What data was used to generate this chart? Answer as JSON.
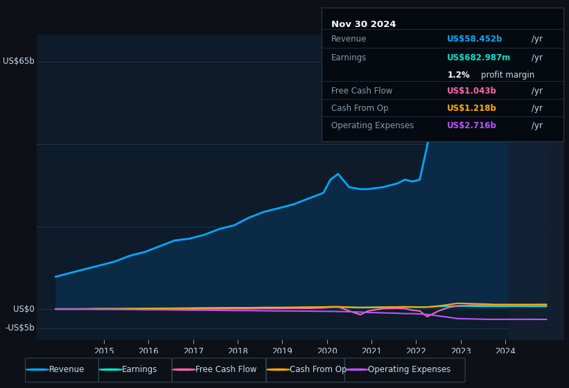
{
  "bg_color": "#0d1117",
  "plot_bg_color": "#0d1b2a",
  "ylabel_top": "US$65b",
  "ylabel_mid": "US$0",
  "ylabel_bot": "-US$5b",
  "x_years": [
    2013.92,
    2014.25,
    2014.58,
    2014.92,
    2015.25,
    2015.58,
    2015.92,
    2016.25,
    2016.58,
    2016.92,
    2017.25,
    2017.58,
    2017.92,
    2018.25,
    2018.58,
    2018.92,
    2019.25,
    2019.58,
    2019.92,
    2020.08,
    2020.25,
    2020.5,
    2020.75,
    2020.92,
    2021.25,
    2021.58,
    2021.75,
    2021.92,
    2022.08,
    2022.25,
    2022.5,
    2022.75,
    2022.92,
    2023.25,
    2023.58,
    2023.75,
    2023.92,
    2024.25,
    2024.58,
    2024.92
  ],
  "revenue": [
    8.5,
    9.5,
    10.5,
    11.5,
    12.5,
    14.0,
    15.0,
    16.5,
    18.0,
    18.5,
    19.5,
    21.0,
    22.0,
    24.0,
    25.5,
    26.5,
    27.5,
    29.0,
    30.5,
    34.0,
    35.5,
    32.0,
    31.5,
    31.5,
    32.0,
    33.0,
    34.0,
    33.5,
    34.0,
    43.0,
    58.0,
    64.5,
    65.0,
    62.0,
    58.0,
    55.0,
    53.0,
    53.5,
    56.0,
    58.0
  ],
  "earnings": [
    0.05,
    0.05,
    0.05,
    0.1,
    0.1,
    0.1,
    0.15,
    0.2,
    0.2,
    0.25,
    0.3,
    0.3,
    0.35,
    0.35,
    0.4,
    0.4,
    0.4,
    0.45,
    0.5,
    0.5,
    0.5,
    0.45,
    0.4,
    0.4,
    0.45,
    0.5,
    0.5,
    0.5,
    0.5,
    0.55,
    0.7,
    0.75,
    0.8,
    0.75,
    0.7,
    0.7,
    0.7,
    0.7,
    0.68,
    0.68
  ],
  "free_cash_flow": [
    0.0,
    0.0,
    0.0,
    0.0,
    0.0,
    0.0,
    0.0,
    0.0,
    0.0,
    0.0,
    0.05,
    0.05,
    0.1,
    0.1,
    0.15,
    0.15,
    0.2,
    0.2,
    0.3,
    0.5,
    0.6,
    -0.5,
    -1.5,
    -0.5,
    0.1,
    0.2,
    0.1,
    -0.3,
    -0.5,
    -2.0,
    -0.5,
    0.5,
    0.8,
    1.0,
    1.0,
    1.0,
    1.0,
    1.0,
    1.0,
    1.04
  ],
  "cash_from_op": [
    0.0,
    0.0,
    0.0,
    0.05,
    0.05,
    0.1,
    0.1,
    0.15,
    0.2,
    0.2,
    0.25,
    0.3,
    0.3,
    0.35,
    0.4,
    0.4,
    0.45,
    0.5,
    0.55,
    0.6,
    0.6,
    0.5,
    0.4,
    0.45,
    0.5,
    0.55,
    0.6,
    0.55,
    0.5,
    0.5,
    0.8,
    1.2,
    1.5,
    1.4,
    1.3,
    1.2,
    1.2,
    1.2,
    1.2,
    1.22
  ],
  "op_expenses": [
    -0.05,
    -0.05,
    -0.05,
    -0.1,
    -0.1,
    -0.15,
    -0.2,
    -0.2,
    -0.25,
    -0.3,
    -0.3,
    -0.35,
    -0.4,
    -0.4,
    -0.45,
    -0.5,
    -0.5,
    -0.55,
    -0.6,
    -0.6,
    -0.65,
    -0.7,
    -0.8,
    -0.9,
    -1.0,
    -1.1,
    -1.2,
    -1.2,
    -1.3,
    -1.4,
    -1.8,
    -2.2,
    -2.5,
    -2.6,
    -2.7,
    -2.7,
    -2.7,
    -2.7,
    -2.7,
    -2.72
  ],
  "revenue_color": "#00aaff",
  "earnings_color": "#00e5cc",
  "fcf_color": "#ff66aa",
  "cashop_color": "#ffaa00",
  "opex_color": "#bb55ff",
  "grid_color": "#1e3a5a",
  "axis_label_color": "#8899aa",
  "text_color": "#ccddee",
  "info_box_bg": "#050a10",
  "info_box_border": "#2a3a4a",
  "ylim_min": -8.0,
  "ylim_max": 72.0,
  "xlim_min": 2013.5,
  "xlim_max": 2025.3,
  "x_ticks": [
    2015,
    2016,
    2017,
    2018,
    2019,
    2020,
    2021,
    2022,
    2023,
    2024
  ],
  "info": {
    "date": "Nov 30 2024",
    "revenue_label": "Revenue",
    "revenue_val": "US$58.452b",
    "revenue_color": "#00aaff",
    "earnings_label": "Earnings",
    "earnings_val": "US$682.987m",
    "earnings_color": "#00e5cc",
    "profit_margin": "1.2%",
    "fcf_label": "Free Cash Flow",
    "fcf_val": "US$1.043b",
    "fcf_color": "#ff66aa",
    "cashop_label": "Cash From Op",
    "cashop_val": "US$1.218b",
    "cashop_color": "#ffaa00",
    "opex_label": "Operating Expenses",
    "opex_val": "US$2.716b",
    "opex_color": "#bb55ff"
  },
  "legend": [
    {
      "label": "Revenue",
      "color": "#00aaff"
    },
    {
      "label": "Earnings",
      "color": "#00e5cc"
    },
    {
      "label": "Free Cash Flow",
      "color": "#ff66aa"
    },
    {
      "label": "Cash From Op",
      "color": "#ffaa00"
    },
    {
      "label": "Operating Expenses",
      "color": "#bb55ff"
    }
  ]
}
